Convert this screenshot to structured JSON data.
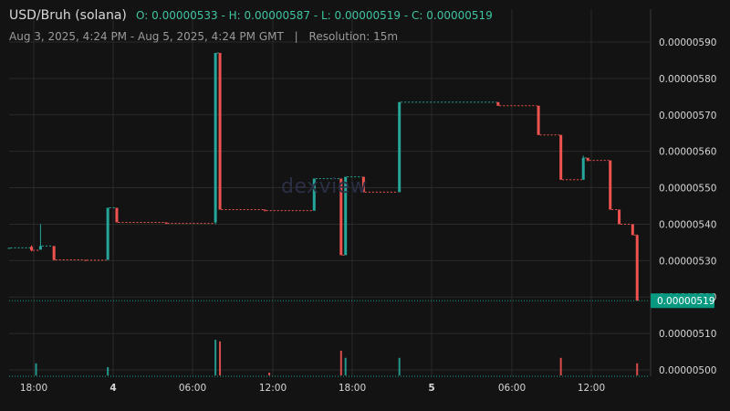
{
  "header": {
    "pair": "USD/Bruh (solana)",
    "ohlc": "O: 0.00000533 - H: 0.00000587 - L: 0.00000519 - C: 0.00000519",
    "range": "Aug 3, 2025, 4:24 PM - Aug 5, 2025, 4:24 PM GMT",
    "separator": "|",
    "resolution": "Resolution: 15m"
  },
  "watermark": "dexview",
  "colors": {
    "up": "#26a69a",
    "down": "#ef5350",
    "background": "#131313",
    "grid": "#2a2a2a",
    "price_tag": "#089981"
  },
  "chart_data": {
    "type": "candlestick",
    "ylim": [
      4.98e-06,
      5.97e-06
    ],
    "y_ticks": [
      "0.00000500",
      "0.00000510",
      "0.00000520",
      "0.00000530",
      "0.00000540",
      "0.00000550",
      "0.00000560",
      "0.00000570",
      "0.00000580",
      "0.00000590"
    ],
    "x_tick_labels": [
      "18:00",
      "4",
      "06:00",
      "12:00",
      "18:00",
      "5",
      "06:00",
      "12:00"
    ],
    "last_price": "0.00000519",
    "candles": [
      {
        "t": 0.0,
        "o": 5.335e-06,
        "h": 5.335e-06,
        "l": 5.335e-06,
        "c": 5.335e-06
      },
      {
        "t": 0.05,
        "o": 5.338e-06,
        "h": 5.342e-06,
        "l": 5.325e-06,
        "c": 5.328e-06
      },
      {
        "t": 0.07,
        "o": 5.33e-06,
        "h": 5.4e-06,
        "l": 5.33e-06,
        "c": 5.34e-06
      },
      {
        "t": 0.1,
        "o": 5.34e-06,
        "h": 5.34e-06,
        "l": 5.3e-06,
        "c": 5.302e-06
      },
      {
        "t": 0.17,
        "o": 5.302e-06,
        "h": 5.302e-06,
        "l": 5.3e-06,
        "c": 5.301e-06
      },
      {
        "t": 0.22,
        "o": 5.302e-06,
        "h": 5.445e-06,
        "l": 5.302e-06,
        "c": 5.445e-06
      },
      {
        "t": 0.24,
        "o": 5.445e-06,
        "h": 5.445e-06,
        "l": 5.405e-06,
        "c": 5.405e-06
      },
      {
        "t": 0.35,
        "o": 5.405e-06,
        "h": 5.405e-06,
        "l": 5.4e-06,
        "c": 5.402e-06
      },
      {
        "t": 0.46,
        "o": 5.405e-06,
        "h": 5.87e-06,
        "l": 5.4e-06,
        "c": 5.87e-06
      },
      {
        "t": 0.47,
        "o": 5.87e-06,
        "h": 5.87e-06,
        "l": 5.44e-06,
        "c": 5.44e-06
      },
      {
        "t": 0.57,
        "o": 5.44e-06,
        "h": 5.44e-06,
        "l": 5.435e-06,
        "c": 5.437e-06
      },
      {
        "t": 0.68,
        "o": 5.437e-06,
        "h": 5.525e-06,
        "l": 5.437e-06,
        "c": 5.525e-06
      },
      {
        "t": 0.74,
        "o": 5.525e-06,
        "h": 5.525e-06,
        "l": 5.315e-06,
        "c": 5.315e-06
      },
      {
        "t": 0.75,
        "o": 5.315e-06,
        "h": 5.53e-06,
        "l": 5.315e-06,
        "c": 5.53e-06
      },
      {
        "t": 0.79,
        "o": 5.53e-06,
        "h": 5.53e-06,
        "l": 5.488e-06,
        "c": 5.488e-06
      },
      {
        "t": 0.87,
        "o": 5.488e-06,
        "h": 5.735e-06,
        "l": 5.488e-06,
        "c": 5.735e-06
      },
      {
        "t": 1.09,
        "o": 5.735e-06,
        "h": 5.735e-06,
        "l": 5.725e-06,
        "c": 5.725e-06
      },
      {
        "t": 1.18,
        "o": 5.725e-06,
        "h": 5.725e-06,
        "l": 5.645e-06,
        "c": 5.645e-06
      },
      {
        "t": 1.23,
        "o": 5.645e-06,
        "h": 5.645e-06,
        "l": 5.522e-06,
        "c": 5.522e-06
      },
      {
        "t": 1.28,
        "o": 5.522e-06,
        "h": 5.588e-06,
        "l": 5.522e-06,
        "c": 5.582e-06
      },
      {
        "t": 1.29,
        "o": 5.582e-06,
        "h": 5.582e-06,
        "l": 5.572e-06,
        "c": 5.575e-06
      },
      {
        "t": 1.34,
        "o": 5.575e-06,
        "h": 5.575e-06,
        "l": 5.44e-06,
        "c": 5.44e-06
      },
      {
        "t": 1.36,
        "o": 5.44e-06,
        "h": 5.44e-06,
        "l": 5.4e-06,
        "c": 5.4e-06
      },
      {
        "t": 1.39,
        "o": 5.4e-06,
        "h": 5.4e-06,
        "l": 5.37e-06,
        "c": 5.37e-06
      },
      {
        "t": 1.4,
        "o": 5.37e-06,
        "h": 5.372e-06,
        "l": 5.19e-06,
        "c": 5.19e-06
      }
    ],
    "volume": [
      {
        "t": 0.06,
        "v": 0.22,
        "dir": "up"
      },
      {
        "t": 0.22,
        "v": 0.15,
        "dir": "up"
      },
      {
        "t": 0.46,
        "v": 0.65,
        "dir": "up"
      },
      {
        "t": 0.47,
        "v": 0.62,
        "dir": "down"
      },
      {
        "t": 0.58,
        "v": 0.05,
        "dir": "down"
      },
      {
        "t": 0.74,
        "v": 0.45,
        "dir": "down"
      },
      {
        "t": 0.75,
        "v": 0.32,
        "dir": "up"
      },
      {
        "t": 0.87,
        "v": 0.32,
        "dir": "up"
      },
      {
        "t": 1.23,
        "v": 0.32,
        "dir": "down"
      },
      {
        "t": 1.4,
        "v": 0.22,
        "dir": "down"
      }
    ]
  }
}
